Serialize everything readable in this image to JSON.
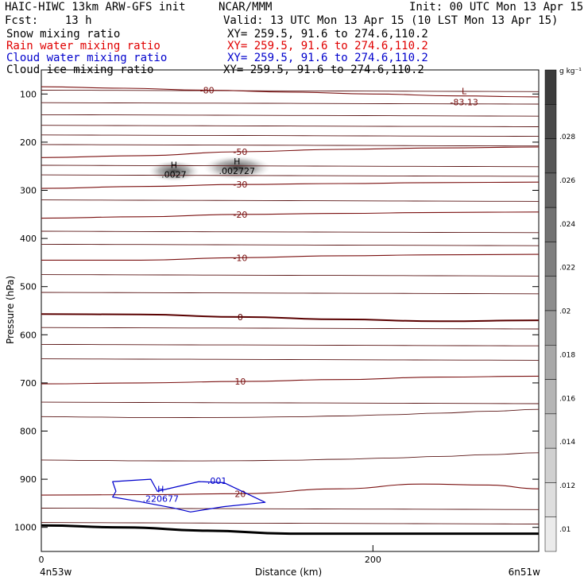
{
  "header": {
    "left1": "HAIC-HIWC 13km ARW-GFS init",
    "center1": "NCAR/MMM",
    "init": "Init: 00 UTC Mon 13 Apr 15",
    "fcst": "Fcst:    13 h",
    "valid": "Valid: 13 UTC Mon 13 Apr 15 (10 LST Mon 13 Apr 15)",
    "fields": [
      {
        "name": "Snow mixing ratio",
        "xy": "XY= 259.5, 91.6 to 274.6,110.2",
        "color": "#000000"
      },
      {
        "name": "Rain water mixing ratio",
        "xy": "XY= 259.5, 91.6 to 274.6,110.2",
        "color": "#e00000"
      },
      {
        "name": "Cloud water mixing ratio",
        "xy": "XY= 259.5, 91.6 to 274.6,110.2",
        "color": "#0000cc"
      },
      {
        "name": "Cloud ice mixing ratio",
        "xy": "XY= 259.5, 91.6 to 274.6,110.2",
        "color": "#000000"
      }
    ]
  },
  "chart_data": {
    "type": "contour",
    "xlabel": "Distance (km)",
    "ylabel": "Pressure (hPa)",
    "xlim": [
      0,
      300
    ],
    "ylim": [
      1050,
      50
    ],
    "x_ticks": [
      0,
      200
    ],
    "y_ticks": [
      100,
      200,
      300,
      400,
      500,
      600,
      700,
      800,
      900,
      1000
    ],
    "x_endpoints": [
      "4n53w",
      "6n51w"
    ],
    "colorbar": {
      "units": "g kg⁻¹",
      "ticks": [
        ".01",
        ".012",
        ".014",
        ".016",
        ".018",
        ".02",
        ".022",
        ".024",
        ".026",
        ".028"
      ]
    },
    "temperature_contours": [
      {
        "label": "-80",
        "color": "#7a1010",
        "points": [
          [
            0,
            85
          ],
          [
            50,
            88
          ],
          [
            100,
            92
          ],
          [
            150,
            96
          ],
          [
            200,
            100
          ],
          [
            250,
            104
          ],
          [
            300,
            106
          ]
        ]
      },
      {
        "label": "-50",
        "color": "#7a1010",
        "points": [
          [
            0,
            232
          ],
          [
            60,
            228
          ],
          [
            120,
            220
          ],
          [
            180,
            215
          ],
          [
            240,
            212
          ],
          [
            300,
            210
          ]
        ]
      },
      {
        "label": "-30",
        "color": "#7a1010",
        "points": [
          [
            0,
            296
          ],
          [
            60,
            292
          ],
          [
            120,
            288
          ],
          [
            180,
            286
          ],
          [
            240,
            284
          ],
          [
            300,
            283
          ]
        ]
      },
      {
        "label": "-20",
        "color": "#7a1010",
        "points": [
          [
            0,
            358
          ],
          [
            60,
            355
          ],
          [
            120,
            350
          ],
          [
            180,
            348
          ],
          [
            240,
            346
          ],
          [
            300,
            345
          ]
        ]
      },
      {
        "label": "-10",
        "color": "#7a1010",
        "points": [
          [
            0,
            445
          ],
          [
            60,
            445
          ],
          [
            120,
            440
          ],
          [
            180,
            436
          ],
          [
            240,
            434
          ],
          [
            300,
            433
          ]
        ]
      },
      {
        "label": "0",
        "color": "#5a0000",
        "points": [
          [
            0,
            557
          ],
          [
            60,
            558
          ],
          [
            120,
            563
          ],
          [
            180,
            568
          ],
          [
            240,
            572
          ],
          [
            300,
            570
          ]
        ]
      },
      {
        "label": "10",
        "color": "#7a1010",
        "points": [
          [
            0,
            702
          ],
          [
            60,
            700
          ],
          [
            120,
            697
          ],
          [
            180,
            693
          ],
          [
            240,
            688
          ],
          [
            300,
            686
          ]
        ]
      },
      {
        "label": "20",
        "color": "#7a1010",
        "points": [
          [
            0,
            933
          ],
          [
            60,
            932
          ],
          [
            120,
            930
          ],
          [
            180,
            920
          ],
          [
            230,
            910
          ],
          [
            270,
            912
          ],
          [
            300,
            920
          ]
        ]
      }
    ],
    "minima": [
      {
        "label": "L",
        "value": "-83.13",
        "x": 255,
        "p": 110
      }
    ],
    "snow_maxima": [
      {
        "label": "H",
        "value": ".0027",
        "x": 80,
        "p": 260
      },
      {
        "label": "H",
        "value": ".002727",
        "x": 118,
        "p": 253
      }
    ],
    "cloud_water": {
      "contour_label": ".001",
      "max": {
        "label": "H",
        "value": ".220677",
        "x": 72,
        "p": 930
      },
      "points": [
        [
          43,
          905
        ],
        [
          66,
          900
        ],
        [
          70,
          925
        ],
        [
          95,
          905
        ],
        [
          110,
          907
        ],
        [
          135,
          948
        ],
        [
          110,
          957
        ],
        [
          90,
          968
        ],
        [
          80,
          960
        ],
        [
          60,
          947
        ],
        [
          43,
          937
        ],
        [
          45,
          925
        ]
      ]
    },
    "ground": {
      "points": [
        [
          0,
          996
        ],
        [
          50,
          1000
        ],
        [
          100,
          1007
        ],
        [
          150,
          1013
        ],
        [
          200,
          1013
        ],
        [
          250,
          1013
        ],
        [
          300,
          1013
        ]
      ]
    }
  }
}
